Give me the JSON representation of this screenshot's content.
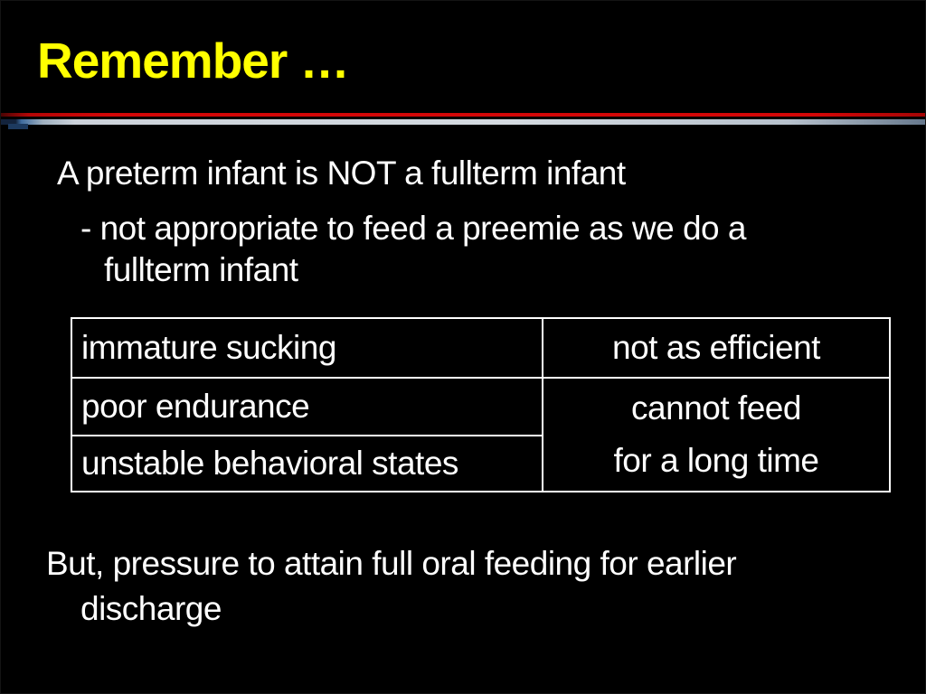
{
  "slide": {
    "title": "Remember …",
    "body": {
      "line1": "A preterm infant is NOT a fullterm infant",
      "line2": "- not appropriate to feed a preemie as we do a",
      "line3": "fullterm infant"
    },
    "table": {
      "row1": {
        "left": "immature sucking",
        "right": "not as efficient"
      },
      "row2": {
        "left": "poor endurance"
      },
      "row3": {
        "left": "unstable behavioral states"
      },
      "merged_right_cell": {
        "line1": "cannot feed",
        "line2": "for a long time"
      }
    },
    "footer": {
      "line1": "But, pressure to attain full oral feeding for earlier",
      "line2": "discharge"
    },
    "colors": {
      "background": "#000000",
      "title": "#ffff00",
      "text": "#ffffff",
      "rule_red": "#d40707",
      "rule_silver": "#d4dae0",
      "rule_navy": "#1d3a5f",
      "table_border": "#ffffff"
    }
  }
}
